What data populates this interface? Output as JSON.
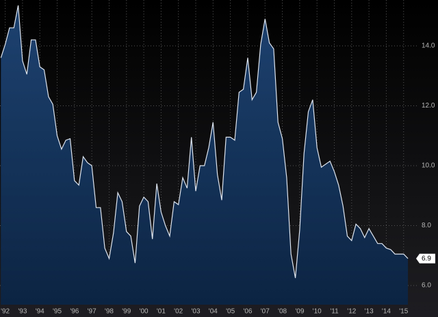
{
  "chart_data": {
    "type": "area",
    "x": [
      1992.25,
      1992.5,
      1992.75,
      1993,
      1993.25,
      1993.5,
      1993.75,
      1994,
      1994.25,
      1994.5,
      1994.75,
      1995,
      1995.25,
      1995.5,
      1995.75,
      1996,
      1996.25,
      1996.5,
      1996.75,
      1997,
      1997.25,
      1997.5,
      1997.75,
      1998,
      1998.25,
      1998.5,
      1998.75,
      1999,
      1999.25,
      1999.5,
      1999.75,
      2000,
      2000.25,
      2000.5,
      2000.75,
      2001,
      2001.25,
      2001.5,
      2001.75,
      2002,
      2002.25,
      2002.5,
      2002.75,
      2003,
      2003.25,
      2003.5,
      2003.75,
      2004,
      2004.25,
      2004.5,
      2004.75,
      2005,
      2005.25,
      2005.5,
      2005.75,
      2006,
      2006.25,
      2006.5,
      2006.75,
      2007,
      2007.25,
      2007.5,
      2007.75,
      2008,
      2008.25,
      2008.5,
      2008.75,
      2009,
      2009.25,
      2009.5,
      2009.75,
      2010,
      2010.25,
      2010.5,
      2010.75,
      2011,
      2011.25,
      2011.5,
      2011.75,
      2012,
      2012.25,
      2012.5,
      2012.75,
      2013,
      2013.25,
      2013.5,
      2013.75,
      2014,
      2014.25,
      2014.5,
      2014.75,
      2015,
      2015.25,
      2015.5,
      2015.75
    ],
    "values": [
      13.6,
      14.05,
      14.6,
      14.6,
      15.35,
      13.5,
      13.05,
      14.2,
      14.2,
      13.3,
      13.2,
      12.3,
      12.05,
      11.0,
      10.55,
      10.85,
      10.9,
      9.5,
      9.35,
      10.3,
      10.1,
      10.0,
      8.6,
      8.6,
      7.25,
      6.9,
      7.75,
      9.1,
      8.8,
      7.8,
      7.65,
      6.75,
      8.65,
      8.95,
      8.8,
      7.55,
      9.4,
      8.45,
      8.0,
      7.65,
      8.8,
      8.7,
      9.6,
      9.25,
      10.95,
      9.15,
      10.0,
      10.0,
      10.6,
      11.45,
      9.7,
      8.85,
      10.95,
      10.95,
      10.85,
      12.45,
      12.55,
      13.6,
      12.2,
      12.45,
      14.05,
      14.9,
      14.1,
      13.9,
      11.45,
      10.9,
      9.6,
      7.05,
      6.25,
      7.85,
      10.4,
      11.8,
      12.2,
      10.6,
      9.95,
      10.05,
      10.15,
      9.8,
      9.35,
      8.65,
      7.65,
      7.5,
      8.05,
      7.9,
      7.6,
      7.9,
      7.65,
      7.4,
      7.4,
      7.25,
      7.2,
      7.05,
      7.05,
      7.05,
      6.9
    ],
    "xlim": [
      1992.2,
      2016.3
    ],
    "ylim": [
      5.36,
      15.53
    ],
    "xticks": [
      {
        "value": 1992.5,
        "label": "'92"
      },
      {
        "value": 1993.5,
        "label": "'93"
      },
      {
        "value": 1994.5,
        "label": "'94"
      },
      {
        "value": 1995.5,
        "label": "'95"
      },
      {
        "value": 1996.5,
        "label": "'96"
      },
      {
        "value": 1997.5,
        "label": "'97"
      },
      {
        "value": 1998.5,
        "label": "'98"
      },
      {
        "value": 1999.5,
        "label": "'99"
      },
      {
        "value": 2000.5,
        "label": "'00"
      },
      {
        "value": 2001.5,
        "label": "'01"
      },
      {
        "value": 2002.5,
        "label": "'02"
      },
      {
        "value": 2003.5,
        "label": "'03"
      },
      {
        "value": 2004.5,
        "label": "'04"
      },
      {
        "value": 2005.5,
        "label": "'05"
      },
      {
        "value": 2006.5,
        "label": "'06"
      },
      {
        "value": 2007.5,
        "label": "'07"
      },
      {
        "value": 2008.5,
        "label": "'08"
      },
      {
        "value": 2009.5,
        "label": "'09"
      },
      {
        "value": 2010.5,
        "label": "'10"
      },
      {
        "value": 2011.5,
        "label": "'11"
      },
      {
        "value": 2012.5,
        "label": "'12"
      },
      {
        "value": 2013.5,
        "label": "'13"
      },
      {
        "value": 2014.5,
        "label": "'14"
      },
      {
        "value": 2015.5,
        "label": "'15"
      }
    ],
    "yticks": [
      {
        "value": 6,
        "label": "6.0"
      },
      {
        "value": 8,
        "label": "8.0"
      },
      {
        "value": 10,
        "label": "10.0"
      },
      {
        "value": 12,
        "label": "12.0"
      },
      {
        "value": 14,
        "label": "14.0"
      }
    ],
    "color": "#dfe6f0",
    "grid": true
  }
}
